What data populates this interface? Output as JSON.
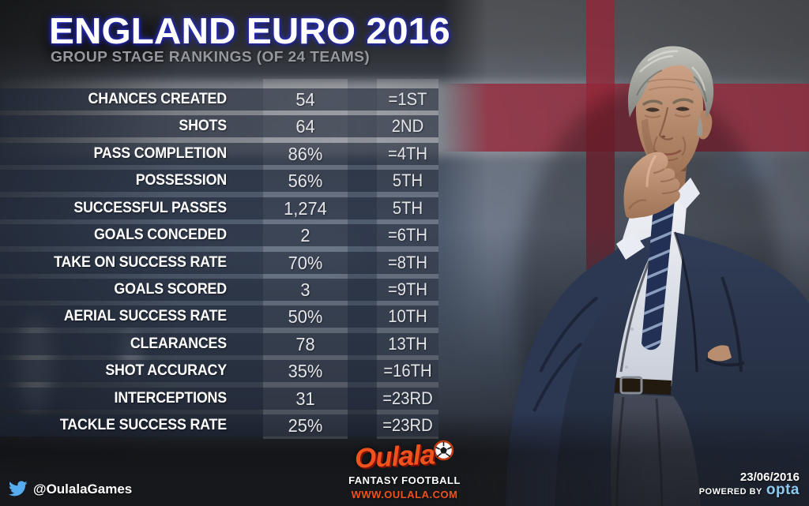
{
  "chart_data": {
    "type": "table",
    "title": "ENGLAND EURO 2016",
    "subtitle": "GROUP STAGE RANKINGS (OF 24 TEAMS)",
    "rows": [
      [
        "CHANCES CREATED",
        "54",
        "=1ST"
      ],
      [
        "SHOTS",
        "64",
        "2ND"
      ],
      [
        "PASS COMPLETION",
        "86%",
        "=4TH"
      ],
      [
        "POSSESSION",
        "56%",
        "5TH"
      ],
      [
        "SUCCESSFUL PASSES",
        "1,274",
        "5TH"
      ],
      [
        "GOALS CONCEDED",
        "2",
        "=6TH"
      ],
      [
        "TAKE ON SUCCESS RATE",
        "70%",
        "=8TH"
      ],
      [
        "GOALS SCORED",
        "3",
        "=9TH"
      ],
      [
        "AERIAL SUCCESS RATE",
        "50%",
        "10TH"
      ],
      [
        "CLEARANCES",
        "78",
        "13TH"
      ],
      [
        "SHOT ACCURACY",
        "35%",
        "=16TH"
      ],
      [
        "INTERCEPTIONS",
        "31",
        "=23RD"
      ],
      [
        "TACKLE SUCCESS RATE",
        "25%",
        "=23RD"
      ]
    ]
  },
  "footer": {
    "twitter_handle": "@OulalaGames",
    "logo_text": "Oulala",
    "tagline": "FANTASY FOOTBALL",
    "website": "WWW.OULALA.COM",
    "date": "23/06/2016",
    "powered_by": "POWERED BY",
    "powered_brand": "opta"
  },
  "colors": {
    "title_text": "#ffffff",
    "title_glow_blue": "#2b31d8",
    "subtitle_gray": "#94979d",
    "row_overlay": "rgba(28,37,53,0.6)",
    "column_overlay": "rgba(255,255,255,0.15)",
    "flag_red": "#942a3a",
    "oulala_orange": "#f0521d",
    "opta_blue": "#8ecaf0",
    "twitter_blue": "#55acee",
    "suit_navy": "#2a3348"
  },
  "icons": {
    "twitter_bird": "twitter-bird-icon",
    "football": "football-icon"
  }
}
